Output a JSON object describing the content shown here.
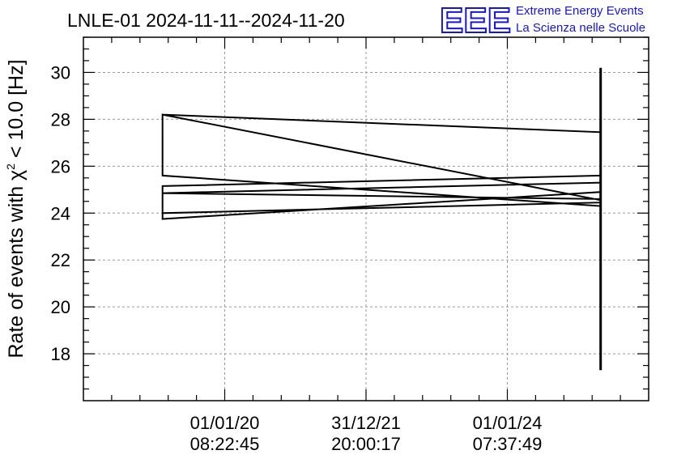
{
  "title": "LNLE-01 2024-11-11--2024-11-20",
  "logo": {
    "mark": "EEE",
    "line1": "Extreme Energy Events",
    "line2": "La Scienza nelle Scuole",
    "color": "#1515e0"
  },
  "chart_data": {
    "type": "line",
    "ylabel_pre": "Rate of events with ",
    "ylabel_chi": "χ",
    "ylabel_sup": "2",
    "ylabel_post": " < 10.0 [Hz]",
    "ylim": [
      16,
      31.5
    ],
    "yticks": [
      18,
      20,
      22,
      24,
      26,
      28,
      30
    ],
    "grid": true,
    "x_tick_labels": [
      {
        "date": "01/01/20",
        "time": "08:22:45",
        "t": 0.25
      },
      {
        "date": "31/12/21",
        "time": "20:00:17",
        "t": 0.5
      },
      {
        "date": "01/01/24",
        "time": "07:37:49",
        "t": 0.75
      }
    ],
    "series": [
      {
        "points": [
          [
            0.14,
            28.2
          ],
          [
            0.915,
            27.45
          ],
          [
            0.915,
            24.55
          ],
          [
            0.14,
            28.2
          ],
          [
            0.14,
            25.6
          ],
          [
            0.915,
            24.3
          ],
          [
            0.915,
            25.6
          ],
          [
            0.14,
            25.15
          ],
          [
            0.14,
            24.85
          ],
          [
            0.915,
            25.3
          ],
          [
            0.915,
            24.6
          ],
          [
            0.14,
            24.85
          ],
          [
            0.14,
            24.0
          ],
          [
            0.915,
            24.45
          ],
          [
            0.915,
            24.9
          ],
          [
            0.14,
            23.75
          ],
          [
            0.14,
            24.0
          ]
        ]
      },
      {
        "points": [
          [
            0.915,
            30.2
          ],
          [
            0.915,
            17.3
          ]
        ]
      }
    ]
  }
}
